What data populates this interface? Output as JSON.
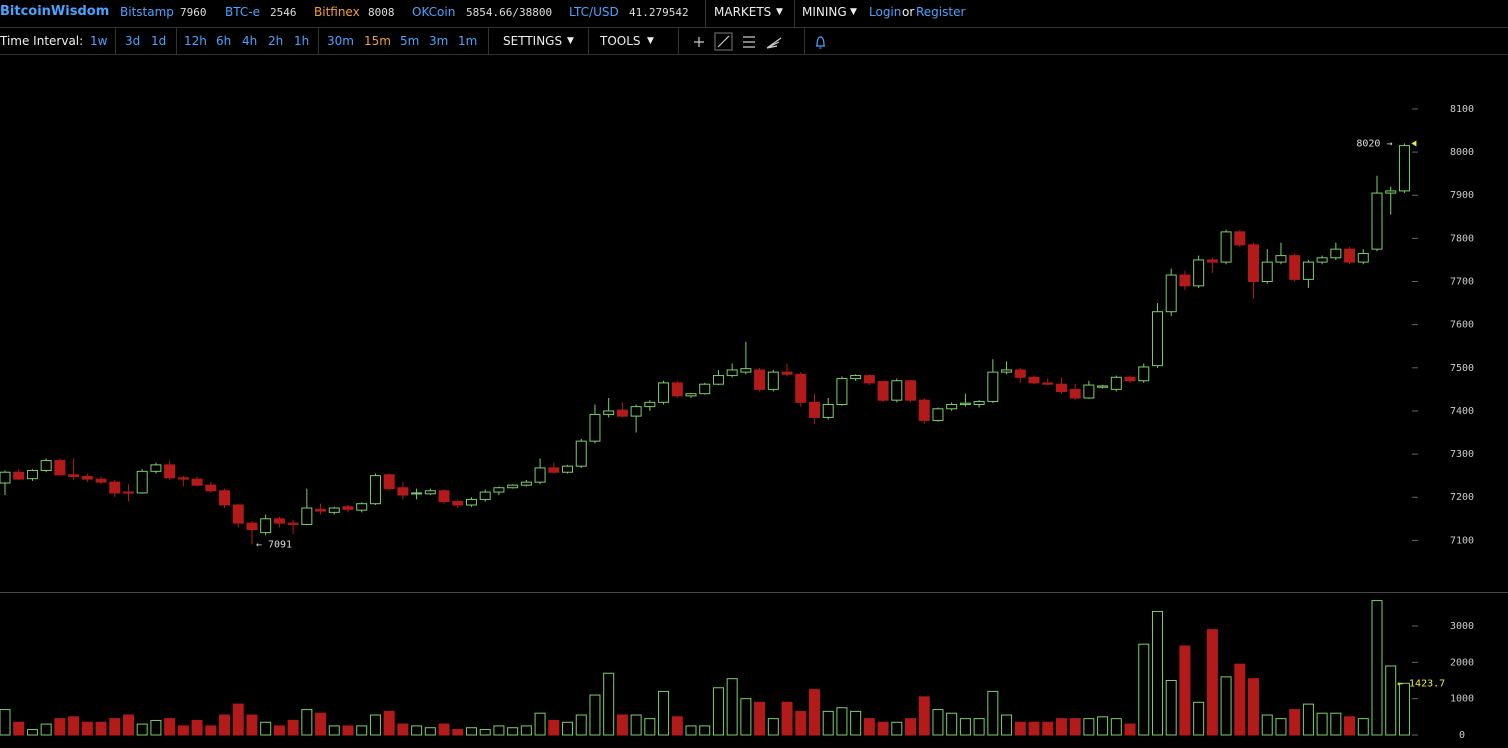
{
  "header": {
    "site": "BitcoinWisdom",
    "tickers": [
      {
        "name": "Bitstamp",
        "price": "7960"
      },
      {
        "name": "BTC-e",
        "price": "2546"
      },
      {
        "name": "Bitfinex",
        "price": "8008"
      },
      {
        "name": "OKCoin",
        "price": "5854.66/38800"
      },
      {
        "name": "LTC/USD",
        "price": "41.279542"
      }
    ],
    "menus": [
      "MARKETS",
      "MINING"
    ],
    "login": "Login",
    "or": "or",
    "register": "Register"
  },
  "toolbar": {
    "label": "Time Interval:",
    "intervals": [
      "1w",
      "3d",
      "1d",
      "12h",
      "6h",
      "4h",
      "2h",
      "1h",
      "30m",
      "15m",
      "5m",
      "3m",
      "1m"
    ],
    "active": "15m",
    "settings": "SETTINGS",
    "tools": "TOOLS"
  },
  "chart_data": [
    {
      "type": "candlestick",
      "up_color": "#7ccf6a",
      "down_color": "#b31b1b",
      "open": [
        7233,
        7258,
        7243,
        7262,
        7285,
        7252,
        7248,
        7242,
        7235,
        7212,
        7210,
        7260,
        7275,
        7245,
        7242,
        7228,
        7215,
        7182,
        7140,
        7118,
        7150,
        7140,
        7137,
        7172,
        7165,
        7178,
        7170,
        7185,
        7252,
        7222,
        7208,
        7208,
        7215,
        7190,
        7182,
        7195,
        7212,
        7222,
        7228,
        7235,
        7268,
        7258,
        7272,
        7330,
        7392,
        7402,
        7388,
        7410,
        7420,
        7465,
        7435,
        7440,
        7462,
        7482,
        7490,
        7495,
        7450,
        7490,
        7485,
        7420,
        7385,
        7415,
        7475,
        7482,
        7468,
        7425,
        7470,
        7425,
        7378,
        7405,
        7415,
        7415,
        7422,
        7490,
        7495,
        7478,
        7465,
        7462,
        7450,
        7430,
        7455,
        7450,
        7478,
        7470,
        7505,
        7630,
        7715,
        7690,
        7750,
        7745,
        7815,
        7785,
        7700,
        7745,
        7760,
        7705,
        7745,
        7755,
        7775,
        7745,
        7775,
        7905,
        7910
      ],
      "high": [
        7262,
        7265,
        7265,
        7290,
        7290,
        7290,
        7255,
        7248,
        7240,
        7230,
        7265,
        7280,
        7285,
        7250,
        7248,
        7235,
        7220,
        7185,
        7145,
        7160,
        7155,
        7148,
        7220,
        7185,
        7178,
        7182,
        7188,
        7255,
        7255,
        7235,
        7220,
        7220,
        7218,
        7195,
        7200,
        7218,
        7225,
        7230,
        7240,
        7290,
        7280,
        7275,
        7335,
        7415,
        7430,
        7420,
        7415,
        7425,
        7470,
        7470,
        7442,
        7465,
        7495,
        7510,
        7560,
        7500,
        7495,
        7510,
        7490,
        7440,
        7430,
        7480,
        7485,
        7485,
        7470,
        7475,
        7472,
        7430,
        7408,
        7420,
        7440,
        7425,
        7520,
        7515,
        7500,
        7482,
        7475,
        7478,
        7462,
        7470,
        7460,
        7482,
        7482,
        7510,
        7650,
        7730,
        7725,
        7760,
        7755,
        7820,
        7820,
        7790,
        7775,
        7790,
        7765,
        7750,
        7760,
        7790,
        7780,
        7775,
        7945,
        7920,
        8020
      ],
      "low": [
        7205,
        7240,
        7238,
        7258,
        7250,
        7240,
        7235,
        7230,
        7200,
        7190,
        7208,
        7255,
        7240,
        7225,
        7225,
        7210,
        7175,
        7130,
        7091,
        7112,
        7130,
        7115,
        7135,
        7160,
        7160,
        7165,
        7165,
        7182,
        7215,
        7195,
        7195,
        7205,
        7185,
        7175,
        7178,
        7190,
        7205,
        7220,
        7225,
        7230,
        7255,
        7255,
        7268,
        7325,
        7385,
        7385,
        7350,
        7400,
        7415,
        7430,
        7430,
        7438,
        7460,
        7478,
        7485,
        7445,
        7445,
        7480,
        7410,
        7370,
        7380,
        7412,
        7470,
        7460,
        7420,
        7420,
        7420,
        7370,
        7375,
        7400,
        7410,
        7408,
        7418,
        7485,
        7465,
        7462,
        7460,
        7440,
        7425,
        7428,
        7452,
        7445,
        7465,
        7465,
        7500,
        7620,
        7680,
        7685,
        7720,
        7740,
        7780,
        7660,
        7695,
        7740,
        7700,
        7685,
        7740,
        7750,
        7740,
        7740,
        7770,
        7855,
        7905
      ],
      "close": [
        7258,
        7242,
        7262,
        7285,
        7252,
        7248,
        7242,
        7235,
        7210,
        7210,
        7260,
        7275,
        7245,
        7242,
        7228,
        7215,
        7182,
        7140,
        7125,
        7150,
        7140,
        7137,
        7175,
        7168,
        7175,
        7172,
        7185,
        7250,
        7220,
        7205,
        7210,
        7215,
        7190,
        7182,
        7195,
        7212,
        7222,
        7228,
        7235,
        7268,
        7258,
        7272,
        7330,
        7392,
        7400,
        7388,
        7410,
        7420,
        7465,
        7435,
        7440,
        7462,
        7482,
        7495,
        7498,
        7450,
        7490,
        7485,
        7420,
        7385,
        7415,
        7475,
        7482,
        7465,
        7425,
        7470,
        7425,
        7378,
        7405,
        7415,
        7418,
        7422,
        7490,
        7495,
        7478,
        7465,
        7462,
        7445,
        7430,
        7460,
        7458,
        7478,
        7470,
        7502,
        7630,
        7715,
        7690,
        7750,
        7745,
        7815,
        7785,
        7700,
        7745,
        7760,
        7705,
        7745,
        7755,
        7775,
        7745,
        7765,
        7905,
        7910,
        8015
      ],
      "ylim": [
        6985,
        8225
      ],
      "yticks": [
        7100,
        7200,
        7300,
        7400,
        7500,
        7600,
        7700,
        7800,
        7900,
        8000,
        8100
      ],
      "annotations": [
        {
          "value": 8020,
          "label": "8020 →"
        },
        {
          "value": 7091,
          "label": "← 7091"
        }
      ]
    },
    {
      "type": "volume",
      "values": [
        700,
        350,
        150,
        300,
        450,
        500,
        350,
        350,
        450,
        550,
        300,
        400,
        450,
        250,
        400,
        250,
        550,
        850,
        550,
        350,
        250,
        400,
        700,
        600,
        250,
        250,
        250,
        550,
        650,
        300,
        250,
        200,
        300,
        150,
        200,
        150,
        250,
        200,
        250,
        600,
        400,
        350,
        550,
        1100,
        1700,
        550,
        550,
        450,
        1200,
        500,
        250,
        250,
        1300,
        1550,
        1000,
        900,
        450,
        900,
        650,
        1250,
        650,
        750,
        650,
        450,
        350,
        350,
        450,
        1050,
        700,
        600,
        450,
        450,
        1200,
        550,
        350,
        350,
        350,
        450,
        450,
        450,
        500,
        450,
        300,
        2500,
        3400,
        1500,
        2450,
        900,
        2900,
        1600,
        1950,
        1550,
        550,
        450,
        700,
        850,
        600,
        600,
        500,
        450,
        3700,
        1900,
        1423.7
      ],
      "ylim": [
        -358,
        3881
      ],
      "yticks": [
        0,
        1000,
        2000,
        3000
      ],
      "annotations": [
        {
          "value": 1423.7,
          "label": "← 1423.7"
        }
      ]
    }
  ]
}
